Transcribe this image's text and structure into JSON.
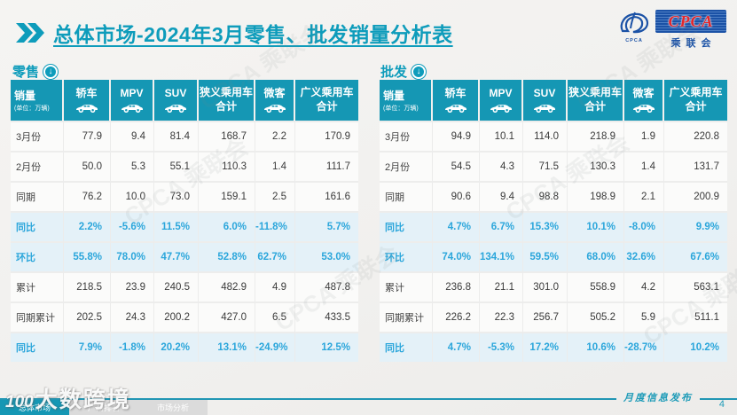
{
  "header": {
    "title": "总体市场-2024年3月零售、批发销量分析表",
    "logo": {
      "acronym": "CPCA",
      "org_cn": "乘联会"
    }
  },
  "tables": [
    {
      "id": "retail",
      "section_label": "零售",
      "unit_line1": "销量",
      "unit_line2": "(单位：万辆)",
      "columns": [
        {
          "lines": [
            "轿车"
          ],
          "icon": "sedan-icon"
        },
        {
          "lines": [
            "MPV"
          ],
          "icon": "mpv-icon"
        },
        {
          "lines": [
            "SUV"
          ],
          "icon": "suv-icon"
        },
        {
          "lines": [
            "狭义乘用车",
            "合计"
          ],
          "icon": null
        },
        {
          "lines": [
            "微客"
          ],
          "icon": "microvan-icon"
        },
        {
          "lines": [
            "广义乘用车",
            "合计"
          ],
          "icon": null
        }
      ],
      "rows": [
        {
          "label": "3月份",
          "highlight": false,
          "values": [
            "77.9",
            "9.4",
            "81.4",
            "168.7",
            "2.2",
            "170.9"
          ]
        },
        {
          "label": "2月份",
          "highlight": false,
          "values": [
            "50.0",
            "5.3",
            "55.1",
            "110.3",
            "1.4",
            "111.7"
          ]
        },
        {
          "label": "同期",
          "highlight": false,
          "values": [
            "76.2",
            "10.0",
            "73.0",
            "159.1",
            "2.5",
            "161.6"
          ]
        },
        {
          "label": "同比",
          "highlight": true,
          "values": [
            "2.2%",
            "-5.6%",
            "11.5%",
            "6.0%",
            "-11.8%",
            "5.7%"
          ]
        },
        {
          "label": "环比",
          "highlight": true,
          "values": [
            "55.8%",
            "78.0%",
            "47.7%",
            "52.8%",
            "62.7%",
            "53.0%"
          ]
        },
        {
          "label": "累计",
          "highlight": false,
          "values": [
            "218.5",
            "23.9",
            "240.5",
            "482.9",
            "4.9",
            "487.8"
          ]
        },
        {
          "label": "同期累计",
          "highlight": false,
          "values": [
            "202.5",
            "24.3",
            "200.2",
            "427.0",
            "6.5",
            "433.5"
          ]
        },
        {
          "label": "同比",
          "highlight": true,
          "values": [
            "7.9%",
            "-1.8%",
            "20.2%",
            "13.1%",
            "-24.9%",
            "12.5%"
          ]
        }
      ]
    },
    {
      "id": "wholesale",
      "section_label": "批发",
      "unit_line1": "销量",
      "unit_line2": "(单位：万辆)",
      "columns": [
        {
          "lines": [
            "轿车"
          ],
          "icon": "sedan-icon"
        },
        {
          "lines": [
            "MPV"
          ],
          "icon": "mpv-icon"
        },
        {
          "lines": [
            "SUV"
          ],
          "icon": "suv-icon"
        },
        {
          "lines": [
            "狭义乘用车",
            "合计"
          ],
          "icon": null
        },
        {
          "lines": [
            "微客"
          ],
          "icon": "microvan-icon"
        },
        {
          "lines": [
            "广义乘用车",
            "合计"
          ],
          "icon": null
        }
      ],
      "rows": [
        {
          "label": "3月份",
          "highlight": false,
          "values": [
            "94.9",
            "10.1",
            "114.0",
            "218.9",
            "1.9",
            "220.8"
          ]
        },
        {
          "label": "2月份",
          "highlight": false,
          "values": [
            "54.5",
            "4.3",
            "71.5",
            "130.3",
            "1.4",
            "131.7"
          ]
        },
        {
          "label": "同期",
          "highlight": false,
          "values": [
            "90.6",
            "9.4",
            "98.8",
            "198.9",
            "2.1",
            "200.9"
          ]
        },
        {
          "label": "同比",
          "highlight": true,
          "values": [
            "4.7%",
            "6.7%",
            "15.3%",
            "10.1%",
            "-8.0%",
            "9.9%"
          ]
        },
        {
          "label": "环比",
          "highlight": true,
          "values": [
            "74.0%",
            "134.1%",
            "59.5%",
            "68.0%",
            "32.6%",
            "67.6%"
          ]
        },
        {
          "label": "累计",
          "highlight": false,
          "values": [
            "236.8",
            "21.1",
            "301.0",
            "558.9",
            "4.2",
            "563.1"
          ]
        },
        {
          "label": "同期累计",
          "highlight": false,
          "values": [
            "226.2",
            "22.3",
            "256.7",
            "505.2",
            "5.9",
            "511.1"
          ]
        },
        {
          "label": "同比",
          "highlight": true,
          "values": [
            "4.7%",
            "-5.3%",
            "17.2%",
            "10.6%",
            "-28.7%",
            "10.2%"
          ]
        }
      ]
    }
  ],
  "footer": {
    "release_label": "月度信息发布",
    "page_number": "4",
    "tabs": [
      {
        "label": "总体市场",
        "active": true
      },
      {
        "label": "厂商排名",
        "active": false
      },
      {
        "label": "市场分析",
        "active": false
      }
    ]
  },
  "watermarks": {
    "site_logo": "100",
    "site_text": "大数跨境",
    "background_text": "CPCA 乘联会"
  },
  "colors": {
    "teal": "#1597B4",
    "title_teal": "#0E9CBB",
    "cyan": "#2BA6DB",
    "highlight_bg": "#E4F1F8",
    "page_bg": "#F2F1EF",
    "logo_blue": "#1B52A6",
    "logo_red": "#E3262B"
  }
}
